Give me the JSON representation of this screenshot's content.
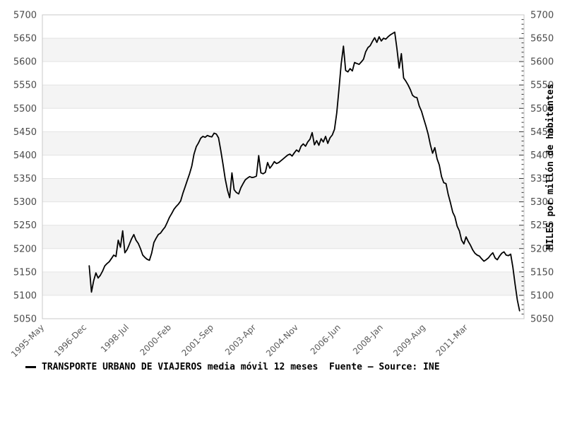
{
  "chart_data": {
    "type": "line",
    "title": "",
    "legend": {
      "marker": "line",
      "label": "TRANSPORTE URBANO DE VIAJEROS media móvil 12 meses  Fuente – Source: INE"
    },
    "x_axis": {
      "tick_labels": [
        "1995-May",
        "1996-Dec",
        "1998-Jul",
        "2000-Feb",
        "2001-Sep",
        "2003-Apr",
        "2004-Nov",
        "2006-Jun",
        "2008-Jan",
        "2009-Aug",
        "2011-Mar"
      ],
      "tick_interval_months": 19,
      "axis_total_months": 216,
      "grid": false
    },
    "y_axis": {
      "label": "MILES por millón de habitantes",
      "min": 5050,
      "max": 5700,
      "major_step": 50,
      "minor_step": 10,
      "tick_labels": [
        "5050",
        "5100",
        "5150",
        "5200",
        "5250",
        "5300",
        "5350",
        "5400",
        "5450",
        "5500",
        "5550",
        "5600",
        "5650",
        "5700"
      ],
      "labels_on_left": true,
      "labels_on_right": true,
      "grid": true,
      "alternating_bands": true
    },
    "series": [
      {
        "name": "TRANSPORTE URBANO DE VIAJEROS media móvil 12 meses",
        "source": "Fuente – Source: INE",
        "color": "#000000",
        "start_month_offset": 21,
        "values": [
          5163,
          5107,
          5131,
          5148,
          5137,
          5143,
          5152,
          5163,
          5168,
          5172,
          5179,
          5186,
          5183,
          5218,
          5203,
          5238,
          5191,
          5198,
          5209,
          5221,
          5230,
          5218,
          5211,
          5200,
          5186,
          5181,
          5177,
          5175,
          5190,
          5213,
          5222,
          5230,
          5233,
          5240,
          5246,
          5256,
          5267,
          5275,
          5284,
          5290,
          5295,
          5302,
          5318,
          5332,
          5346,
          5360,
          5376,
          5402,
          5418,
          5426,
          5436,
          5440,
          5438,
          5442,
          5440,
          5439,
          5447,
          5445,
          5437,
          5410,
          5380,
          5349,
          5325,
          5309,
          5362,
          5326,
          5320,
          5317,
          5330,
          5339,
          5347,
          5351,
          5354,
          5352,
          5353,
          5355,
          5399,
          5362,
          5360,
          5363,
          5384,
          5372,
          5378,
          5386,
          5382,
          5384,
          5388,
          5392,
          5396,
          5400,
          5402,
          5398,
          5405,
          5411,
          5407,
          5419,
          5424,
          5419,
          5428,
          5434,
          5448,
          5422,
          5431,
          5421,
          5435,
          5428,
          5440,
          5425,
          5437,
          5443,
          5455,
          5490,
          5540,
          5595,
          5633,
          5581,
          5578,
          5585,
          5580,
          5598,
          5596,
          5594,
          5599,
          5605,
          5621,
          5630,
          5634,
          5643,
          5651,
          5641,
          5653,
          5644,
          5650,
          5648,
          5653,
          5657,
          5660,
          5663,
          5628,
          5586,
          5617,
          5565,
          5558,
          5550,
          5540,
          5528,
          5524,
          5523,
          5505,
          5494,
          5478,
          5462,
          5445,
          5422,
          5404,
          5416,
          5392,
          5379,
          5354,
          5341,
          5339,
          5316,
          5298,
          5278,
          5268,
          5248,
          5238,
          5218,
          5210,
          5225,
          5215,
          5207,
          5197,
          5190,
          5186,
          5184,
          5178,
          5173,
          5176,
          5180,
          5186,
          5191,
          5180,
          5176,
          5184,
          5190,
          5193,
          5186,
          5185,
          5188,
          5160,
          5123,
          5090,
          5067
        ]
      }
    ],
    "colors": {
      "line": "#000000",
      "band": "#f4f4f4",
      "grid": "#e3e3e3",
      "border": "#c9c9c9",
      "y_tick_text": "#4a4a4a",
      "x_tick_text": "#5a5a5a"
    }
  }
}
